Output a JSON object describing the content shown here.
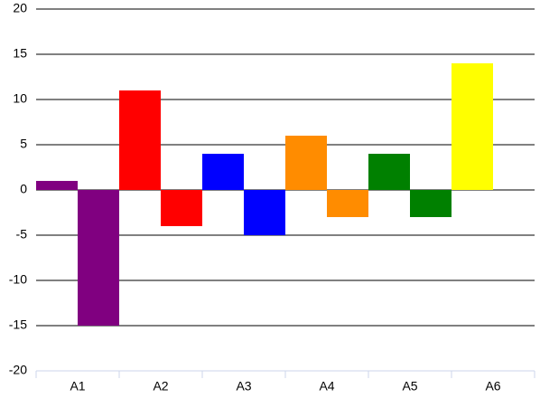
{
  "chart_data": {
    "type": "bar",
    "categories": [
      "A1",
      "A2",
      "A3",
      "A4",
      "A5",
      "A6"
    ],
    "colors": [
      "#800080",
      "#ff0000",
      "#0000ff",
      "#ff8c00",
      "#008000",
      "#ffff00"
    ],
    "series": [
      {
        "values": [
          1,
          11,
          4,
          6,
          4,
          14
        ]
      },
      {
        "values": [
          -15,
          -4,
          -5,
          -3,
          -3,
          null
        ]
      }
    ],
    "ylim": [
      -20,
      20
    ],
    "yticks": [
      -20,
      -15,
      -10,
      -5,
      0,
      5,
      10,
      15,
      20
    ],
    "grid": true
  }
}
